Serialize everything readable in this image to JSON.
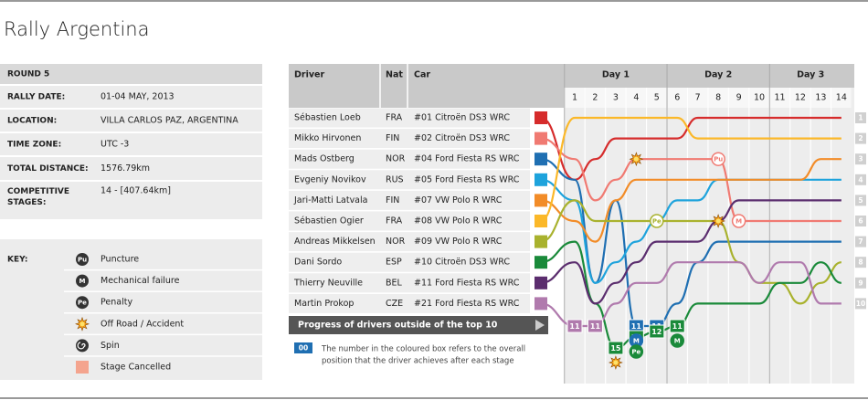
{
  "title": "Rally Argentina",
  "info": [
    {
      "label": "ROUND 5",
      "value": null
    },
    {
      "label": "RALLY DATE:",
      "value": "01-04 MAY, 2013"
    },
    {
      "label": "LOCATION:",
      "value": "VILLA CARLOS PAZ, ARGENTINA"
    },
    {
      "label": "TIME ZONE:",
      "value": "UTC -3"
    },
    {
      "label": "TOTAL DISTANCE:",
      "value": "1576.79km"
    },
    {
      "label": "COMPETITIVE STAGES:",
      "value": "14 - [407.64km]"
    }
  ],
  "key": {
    "title": "KEY:",
    "items": [
      {
        "icon": "Pu",
        "label": "Puncture"
      },
      {
        "icon": "M",
        "label": "Mechanical failure"
      },
      {
        "icon": "Pe",
        "label": "Penalty"
      },
      {
        "icon": null,
        "label": "Off Road / Accident"
      },
      {
        "icon": null,
        "label": "Spin"
      },
      {
        "icon": null,
        "label": "Stage Cancelled"
      }
    ]
  },
  "headers": [
    "Driver",
    "Nat",
    "Car"
  ],
  "days": [
    {
      "label": "Day 1",
      "first": 1,
      "last": 5
    },
    {
      "label": "Day 2",
      "first": 6,
      "last": 10
    },
    {
      "label": "Day 3",
      "first": 11,
      "last": 14
    }
  ],
  "stages": [
    1,
    2,
    3,
    4,
    5,
    6,
    7,
    8,
    9,
    10,
    11,
    12,
    13,
    14
  ],
  "ranks": [
    1,
    2,
    3,
    4,
    5,
    6,
    7,
    8,
    9,
    10
  ],
  "drivers": [
    {
      "name": "Sébastien Loeb",
      "nat": "FRA",
      "car": "#01 Citroën DS3 WRC",
      "color": "#d62c2c",
      "positions": [
        1,
        4,
        3,
        2,
        2,
        2,
        2,
        1,
        1,
        1,
        1,
        1,
        1,
        1,
        1
      ]
    },
    {
      "name": "Mikko Hirvonen",
      "nat": "FIN",
      "car": "#02 Citroën DS3 WRC",
      "color": "#f07a72",
      "positions": [
        2,
        3,
        5,
        4,
        3,
        3,
        3,
        3,
        3,
        6,
        6,
        6,
        6,
        6,
        6
      ]
    },
    {
      "name": "Mads Ostberg",
      "nat": "NOR",
      "car": "#04 Ford Fiesta RS WRC",
      "color": "#1f6fb2",
      "positions": [
        3,
        4,
        9,
        5,
        11,
        11,
        10,
        8,
        7,
        7,
        7,
        7,
        7,
        7,
        7
      ]
    },
    {
      "name": "Evgeniy Novikov",
      "nat": "RUS",
      "car": "#05 Ford Fiesta RS WRC",
      "color": "#1ea3dc",
      "positions": [
        4,
        5,
        9,
        8,
        7,
        6,
        5,
        5,
        4,
        4,
        4,
        4,
        4,
        4,
        4
      ]
    },
    {
      "name": "Jari-Matti Latvala",
      "nat": "FIN",
      "car": "#07 VW Polo R WRC",
      "color": "#f28c28",
      "positions": [
        5,
        6,
        7,
        5,
        4,
        4,
        4,
        4,
        4,
        4,
        4,
        4,
        4,
        3,
        3
      ]
    },
    {
      "name": "Sébastien Ogier",
      "nat": "FRA",
      "car": "#08 VW Polo R WRC",
      "color": "#fbb829",
      "positions": [
        6,
        1,
        1,
        1,
        1,
        1,
        1,
        2,
        2,
        2,
        2,
        2,
        2,
        2,
        2
      ]
    },
    {
      "name": "Andreas Mikkelsen",
      "nat": "NOR",
      "car": "#09 VW Polo R WRC",
      "color": "#a9b22e",
      "positions": [
        7,
        5,
        6,
        6,
        6,
        6,
        6,
        6,
        6,
        8,
        9,
        9,
        10,
        9,
        8
      ]
    },
    {
      "name": "Dani Sordo",
      "nat": "ESP",
      "car": "#10 Citroën DS3 WRC",
      "color": "#1a8a3a",
      "positions": [
        8,
        7,
        10,
        15,
        13,
        12,
        11,
        10,
        10,
        10,
        10,
        9,
        9,
        8,
        9
      ]
    },
    {
      "name": "Thierry Neuville",
      "nat": "BEL",
      "car": "#11 Ford Fiesta RS WRC",
      "color": "#5b2d6e",
      "positions": [
        9,
        8,
        10,
        9,
        8,
        7,
        7,
        7,
        6,
        5,
        5,
        5,
        5,
        5,
        5
      ]
    },
    {
      "name": "Martin Prokop",
      "nat": "CZE",
      "car": "#21 Ford Fiesta RS WRC",
      "color": "#b07aad",
      "positions": [
        10,
        11,
        11,
        10,
        9,
        9,
        8,
        8,
        8,
        8,
        9,
        8,
        8,
        10,
        10
      ]
    }
  ],
  "events": [
    {
      "type": "Puncture",
      "driver": "Mikko Hirvonen",
      "stage": 8
    },
    {
      "type": "Mechanical failure",
      "driver": "Mikko Hirvonen",
      "stage": 9
    },
    {
      "type": "Penalty",
      "driver": "Andreas Mikkelsen",
      "stage": 5
    },
    {
      "type": "Off Road / Accident",
      "driver": "Andreas Mikkelsen",
      "stage": 8
    },
    {
      "type": "Off Road / Accident",
      "driver": "Mikko Hirvonen",
      "stage": 4
    },
    {
      "type": "Mechanical failure",
      "driver": "Mads Ostberg",
      "stage": 4
    },
    {
      "type": "Penalty",
      "driver": "Dani Sordo",
      "stage": 4
    },
    {
      "type": "Off Road / Accident",
      "driver": "Dani Sordo",
      "stage": 3
    },
    {
      "type": "Mechanical failure",
      "driver": "Dani Sordo",
      "stage": 6
    }
  ],
  "progress_label": "Progress of drivers outside of the top 10",
  "note": {
    "box": "00",
    "text": [
      "The number in the coloured box refers to the overall",
      "position that the driver achieves after each stage"
    ]
  }
}
